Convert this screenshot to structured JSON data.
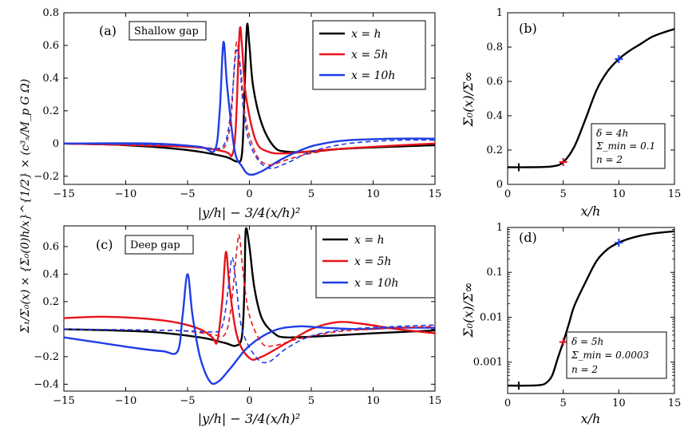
{
  "colors": {
    "black": "#000000",
    "red": "#e8141b",
    "blue": "#1f3de6"
  },
  "labels": {
    "xlabel_left": "|y/h| − 3/4(x/h)²",
    "ylabel_left": "Σ₁/Σ₀(x) × {Σ₀(0)h/x}^{1/2} × (c³ₛ/M_p G Ω)",
    "xlabel_right": "x/h",
    "ylabel_right": "Σ₀(x)/Σ∞"
  },
  "chart_data": [
    {
      "id": "a",
      "type": "line",
      "panel_label": "(a)",
      "title": "Shallow gap",
      "xlim": [
        -15,
        15
      ],
      "ylim": [
        -0.25,
        0.8
      ],
      "xticks": [
        -15,
        -10,
        -5,
        0,
        5,
        10,
        15
      ],
      "xticklabels": [
        "−15",
        "−10",
        "−5",
        "0",
        "5",
        "10",
        "15"
      ],
      "yticks": [
        -0.2,
        0,
        0.2,
        0.4,
        0.6,
        0.8
      ],
      "yticklabels": [
        "−0.2",
        "0",
        "0.2",
        "0.4",
        "0.6",
        "0.8"
      ],
      "legend": [
        "x = h",
        "x = 5h",
        "x = 10h"
      ],
      "series": [
        {
          "name": "x = h, solid",
          "color": "black",
          "dash": false,
          "points": [
            [
              -15,
              0
            ],
            [
              -10,
              -0.01
            ],
            [
              -5,
              -0.04
            ],
            [
              -2,
              -0.08
            ],
            [
              -1,
              -0.11
            ],
            [
              -0.6,
              -0.06
            ],
            [
              -0.4,
              0.3
            ],
            [
              -0.2,
              0.72
            ],
            [
              0,
              0.6
            ],
            [
              0.3,
              0.35
            ],
            [
              1,
              0.12
            ],
            [
              2,
              -0.02
            ],
            [
              3,
              -0.05
            ],
            [
              5,
              -0.05
            ],
            [
              8,
              -0.03
            ],
            [
              15,
              -0.01
            ]
          ]
        },
        {
          "name": "x = 5h, solid",
          "color": "red",
          "dash": false,
          "points": [
            [
              -15,
              0
            ],
            [
              -5,
              -0.02
            ],
            [
              -2,
              -0.05
            ],
            [
              -1.4,
              -0.07
            ],
            [
              -1.1,
              0.1
            ],
            [
              -0.8,
              0.68
            ],
            [
              -0.6,
              0.6
            ],
            [
              -0.3,
              0.3
            ],
            [
              0.5,
              0.02
            ],
            [
              1.5,
              -0.05
            ],
            [
              3,
              -0.06
            ],
            [
              6,
              -0.04
            ],
            [
              10,
              -0.02
            ],
            [
              15,
              0
            ]
          ]
        },
        {
          "name": "x = 10h, solid",
          "color": "blue",
          "dash": false,
          "points": [
            [
              -15,
              0
            ],
            [
              -8,
              0.0
            ],
            [
              -4,
              -0.02
            ],
            [
              -2.8,
              -0.04
            ],
            [
              -2.4,
              0.2
            ],
            [
              -2.1,
              0.62
            ],
            [
              -1.8,
              0.35
            ],
            [
              -1.2,
              -0.04
            ],
            [
              -0.6,
              -0.14
            ],
            [
              0,
              -0.19
            ],
            [
              1,
              -0.17
            ],
            [
              2.5,
              -0.1
            ],
            [
              4.5,
              -0.03
            ],
            [
              6,
              0.0
            ],
            [
              8,
              0.02
            ],
            [
              12,
              0.03
            ],
            [
              15,
              0.03
            ]
          ]
        },
        {
          "name": "x = 5h, dashed",
          "color": "red",
          "dash": true,
          "points": [
            [
              -15,
              0
            ],
            [
              -5,
              -0.02
            ],
            [
              -3,
              -0.03
            ],
            [
              -2,
              -0.02
            ],
            [
              -1.5,
              0.15
            ],
            [
              -1.2,
              0.5
            ],
            [
              -1.0,
              0.62
            ],
            [
              -0.7,
              0.45
            ],
            [
              -0.3,
              0.15
            ],
            [
              0.5,
              -0.06
            ],
            [
              1.5,
              -0.13
            ],
            [
              3,
              -0.1
            ],
            [
              5,
              -0.06
            ],
            [
              8,
              -0.03
            ],
            [
              15,
              0
            ]
          ]
        },
        {
          "name": "x = 10h, dashed",
          "color": "blue",
          "dash": true,
          "points": [
            [
              -15,
              0
            ],
            [
              -6,
              -0.01
            ],
            [
              -3,
              -0.03
            ],
            [
              -2,
              0
            ],
            [
              -1.5,
              0.2
            ],
            [
              -1.1,
              0.55
            ],
            [
              -0.8,
              0.5
            ],
            [
              -0.4,
              0.15
            ],
            [
              0.3,
              -0.05
            ],
            [
              1.5,
              -0.15
            ],
            [
              3,
              -0.12
            ],
            [
              5,
              -0.05
            ],
            [
              8,
              0.0
            ],
            [
              12,
              0.02
            ],
            [
              15,
              0.02
            ]
          ]
        }
      ]
    },
    {
      "id": "b",
      "type": "line",
      "panel_label": "(b)",
      "xlim": [
        0,
        15
      ],
      "ylim": [
        0,
        1
      ],
      "xticks": [
        0,
        5,
        10,
        15
      ],
      "xticklabels": [
        "0",
        "5",
        "10",
        "15"
      ],
      "yticks": [
        0,
        0.2,
        0.4,
        0.6,
        0.8,
        1
      ],
      "yticklabels": [
        "0",
        "0.2",
        "0.4",
        "0.6",
        "0.8",
        "1"
      ],
      "annotation": [
        "δ   = 4h",
        "Σ_min = 0.1",
        "n = 2"
      ],
      "series": [
        {
          "name": "Σ₀/Σ∞",
          "color": "black",
          "dash": false,
          "points": [
            [
              0,
              0.1
            ],
            [
              2,
              0.1
            ],
            [
              4,
              0.105
            ],
            [
              5,
              0.13
            ],
            [
              6,
              0.22
            ],
            [
              7,
              0.38
            ],
            [
              8,
              0.55
            ],
            [
              9,
              0.66
            ],
            [
              10,
              0.73
            ],
            [
              11,
              0.78
            ],
            [
              12,
              0.82
            ],
            [
              13,
              0.86
            ],
            [
              14,
              0.885
            ],
            [
              15,
              0.905
            ]
          ]
        }
      ],
      "markers": [
        {
          "x": 1,
          "y": 0.1,
          "color": "black"
        },
        {
          "x": 5,
          "y": 0.13,
          "color": "red"
        },
        {
          "x": 10,
          "y": 0.73,
          "color": "blue"
        }
      ]
    },
    {
      "id": "c",
      "type": "line",
      "panel_label": "(c)",
      "title": "Deep gap",
      "xlim": [
        -15,
        15
      ],
      "ylim": [
        -0.45,
        0.75
      ],
      "xticks": [
        -15,
        -10,
        -5,
        0,
        5,
        10,
        15
      ],
      "xticklabels": [
        "−15",
        "−10",
        "−5",
        "0",
        "5",
        "10",
        "15"
      ],
      "yticks": [
        -0.4,
        -0.2,
        0,
        0.2,
        0.4,
        0.6
      ],
      "yticklabels": [
        "−0.4",
        "−0.2",
        "0",
        "0.2",
        "0.4",
        "0.6"
      ],
      "legend": [
        "x = h",
        "x = 5h",
        "x = 10h"
      ],
      "series": [
        {
          "name": "x = h, solid",
          "color": "black",
          "dash": false,
          "points": [
            [
              -15,
              0
            ],
            [
              -8,
              -0.02
            ],
            [
              -4,
              -0.06
            ],
            [
              -2,
              -0.1
            ],
            [
              -1.1,
              -0.12
            ],
            [
              -0.6,
              -0.05
            ],
            [
              -0.4,
              0.3
            ],
            [
              -0.3,
              0.72
            ],
            [
              0,
              0.6
            ],
            [
              0.4,
              0.3
            ],
            [
              1,
              0.08
            ],
            [
              2,
              -0.03
            ],
            [
              3,
              -0.06
            ],
            [
              6,
              -0.05
            ],
            [
              10,
              -0.03
            ],
            [
              15,
              -0.01
            ]
          ]
        },
        {
          "name": "x = 5h, solid",
          "color": "red",
          "dash": false,
          "points": [
            [
              -15,
              0.08
            ],
            [
              -12,
              0.09
            ],
            [
              -9,
              0.08
            ],
            [
              -6,
              0.05
            ],
            [
              -4,
              0.0
            ],
            [
              -3,
              -0.06
            ],
            [
              -2.6,
              -0.09
            ],
            [
              -2.2,
              0.2
            ],
            [
              -1.9,
              0.56
            ],
            [
              -1.6,
              0.3
            ],
            [
              -1.0,
              -0.05
            ],
            [
              0,
              -0.21
            ],
            [
              1,
              -0.2
            ],
            [
              3,
              -0.1
            ],
            [
              5,
              0.0
            ],
            [
              7,
              0.05
            ],
            [
              9,
              0.04
            ],
            [
              12,
              0.0
            ],
            [
              15,
              -0.03
            ]
          ]
        },
        {
          "name": "x = 10h, solid",
          "color": "blue",
          "dash": false,
          "points": [
            [
              -15,
              -0.06
            ],
            [
              -12,
              -0.1
            ],
            [
              -9,
              -0.14
            ],
            [
              -7,
              -0.16
            ],
            [
              -5.8,
              -0.16
            ],
            [
              -5.4,
              0.1
            ],
            [
              -5.0,
              0.4
            ],
            [
              -4.6,
              0.1
            ],
            [
              -4,
              -0.2
            ],
            [
              -3.2,
              -0.38
            ],
            [
              -2.5,
              -0.38
            ],
            [
              -1.5,
              -0.28
            ],
            [
              0,
              -0.12
            ],
            [
              2,
              -0.01
            ],
            [
              4,
              0.02
            ],
            [
              6,
              0.01
            ],
            [
              9,
              0.0
            ],
            [
              12,
              0.01
            ],
            [
              15,
              0.01
            ]
          ]
        },
        {
          "name": "x = 5h, dashed",
          "color": "red",
          "dash": true,
          "points": [
            [
              -15,
              0
            ],
            [
              -6,
              -0.01
            ],
            [
              -3,
              -0.04
            ],
            [
              -2,
              -0.04
            ],
            [
              -1.5,
              0.15
            ],
            [
              -1.0,
              0.6
            ],
            [
              -0.8,
              0.67
            ],
            [
              -0.5,
              0.4
            ],
            [
              0,
              0.1
            ],
            [
              1,
              -0.1
            ],
            [
              2,
              -0.12
            ],
            [
              4,
              -0.07
            ],
            [
              7,
              -0.02
            ],
            [
              10,
              0.0
            ],
            [
              15,
              0.02
            ]
          ]
        },
        {
          "name": "x = 10h, dashed",
          "color": "blue",
          "dash": true,
          "points": [
            [
              -15,
              0
            ],
            [
              -6,
              -0.01
            ],
            [
              -3,
              -0.02
            ],
            [
              -2.2,
              0.02
            ],
            [
              -1.7,
              0.3
            ],
            [
              -1.4,
              0.52
            ],
            [
              -1.1,
              0.35
            ],
            [
              -0.6,
              0.0
            ],
            [
              0.5,
              -0.2
            ],
            [
              1.5,
              -0.24
            ],
            [
              3,
              -0.14
            ],
            [
              5,
              -0.05
            ],
            [
              8,
              0.0
            ],
            [
              12,
              0.02
            ],
            [
              15,
              0.03
            ]
          ]
        }
      ]
    },
    {
      "id": "d",
      "type": "line",
      "panel_label": "(d)",
      "yscale": "log",
      "xlim": [
        0,
        15
      ],
      "ylim": [
        0.0002,
        1
      ],
      "xticks": [
        0,
        5,
        10,
        15
      ],
      "xticklabels": [
        "0",
        "5",
        "10",
        "15"
      ],
      "yticks": [
        0.001,
        0.01,
        0.1,
        1
      ],
      "yticklabels": [
        "0.001",
        "0.01",
        "0.1",
        "1"
      ],
      "annotation": [
        "δ   = 5h",
        "Σ_min = 0.0003",
        "n = 2"
      ],
      "series": [
        {
          "name": "Σ₀/Σ∞",
          "color": "black",
          "dash": false,
          "points": [
            [
              0,
              0.0003
            ],
            [
              2,
              0.0003
            ],
            [
              3,
              0.00031
            ],
            [
              3.5,
              0.00035
            ],
            [
              4,
              0.0005
            ],
            [
              4.5,
              0.0012
            ],
            [
              5,
              0.0028
            ],
            [
              5.5,
              0.007
            ],
            [
              6,
              0.018
            ],
            [
              7,
              0.06
            ],
            [
              8,
              0.18
            ],
            [
              9,
              0.33
            ],
            [
              10,
              0.46
            ],
            [
              11,
              0.57
            ],
            [
              12,
              0.66
            ],
            [
              13,
              0.73
            ],
            [
              14,
              0.78
            ],
            [
              15,
              0.82
            ]
          ]
        }
      ],
      "markers": [
        {
          "x": 1,
          "y": 0.0003,
          "color": "black"
        },
        {
          "x": 5,
          "y": 0.0028,
          "color": "red"
        },
        {
          "x": 10,
          "y": 0.46,
          "color": "blue"
        }
      ]
    }
  ]
}
